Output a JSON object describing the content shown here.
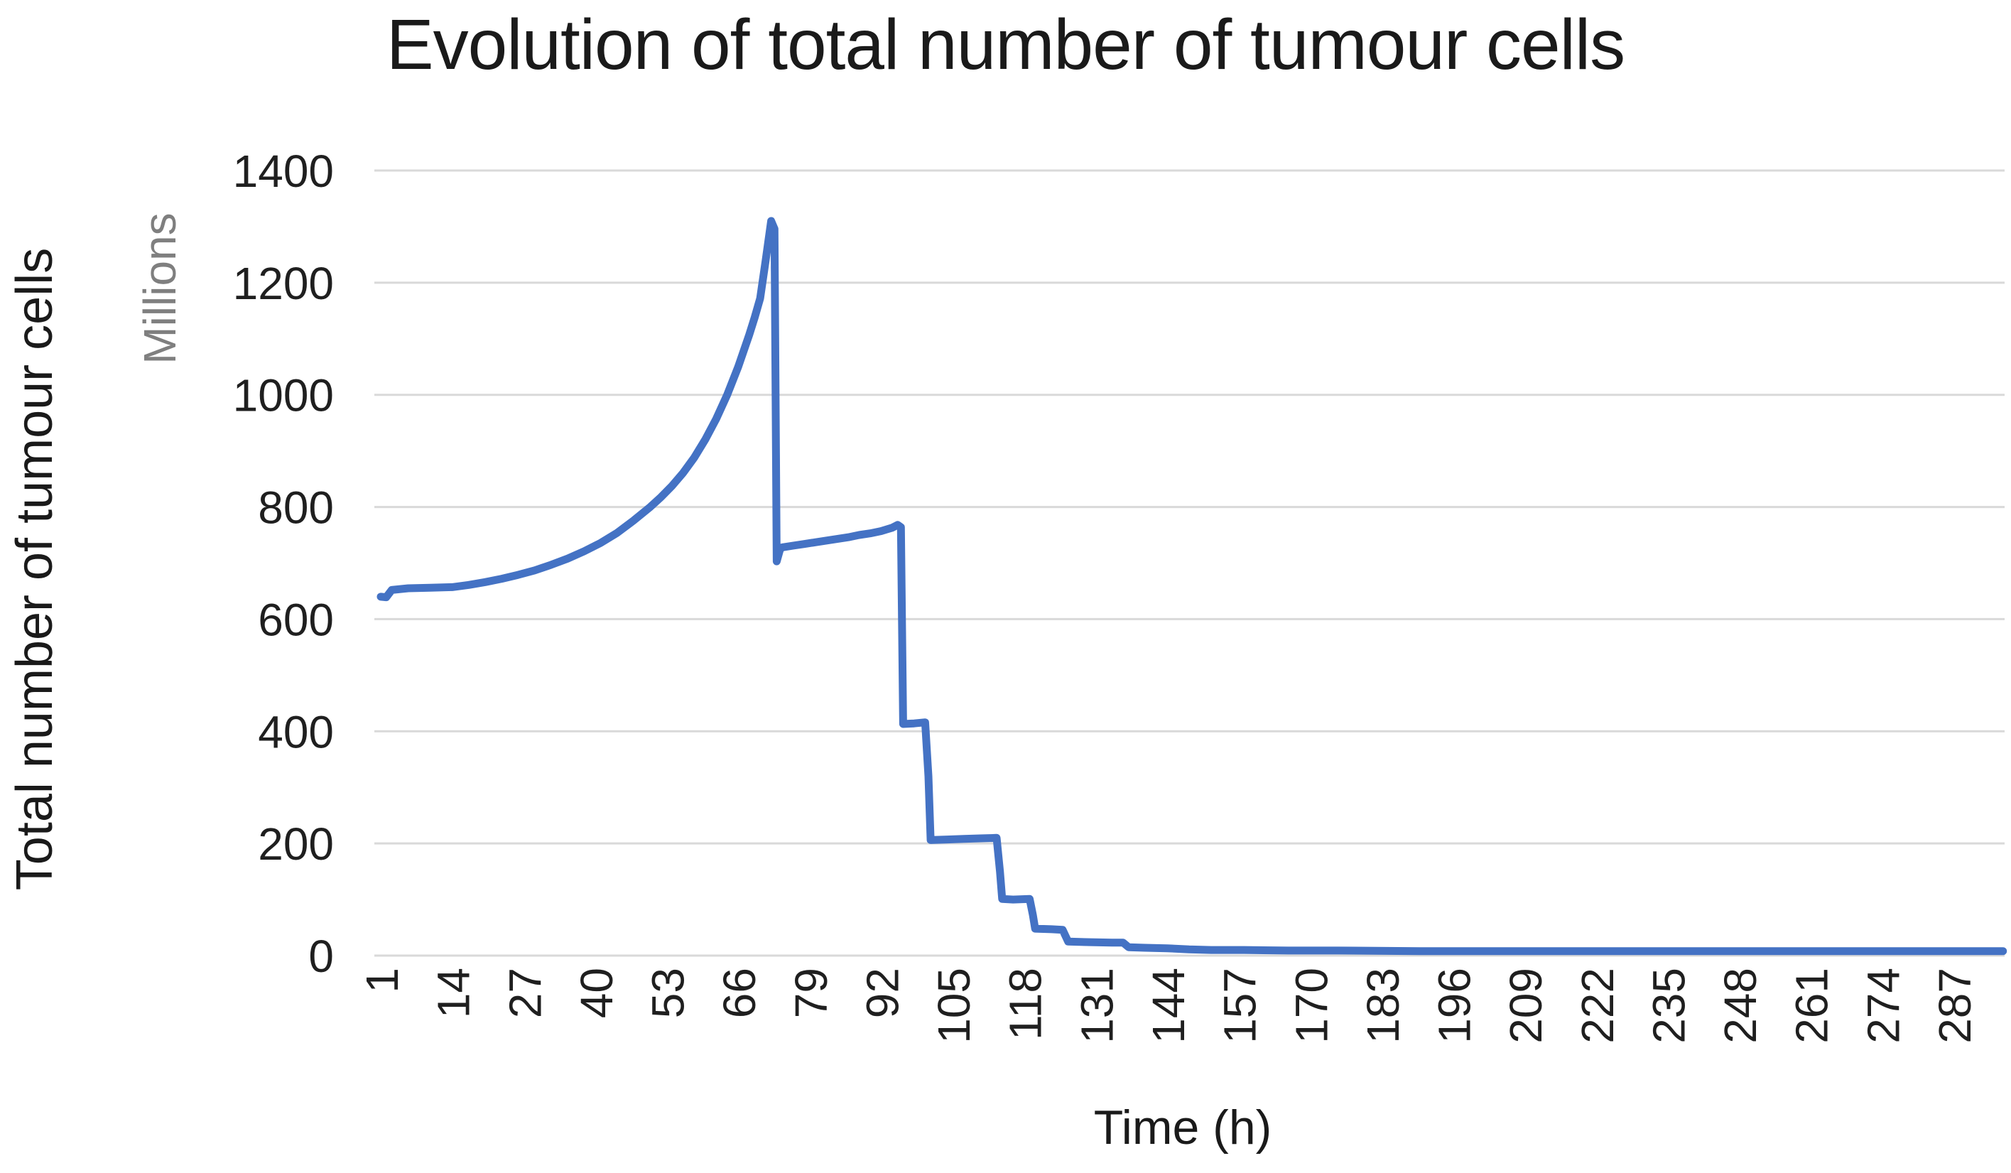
{
  "chart": {
    "title": "Evolution of total number of tumour cells",
    "y_axis_title": "Total number of tumour cells",
    "y_axis_unit": "Millions",
    "x_axis_title": "Time (h)"
  },
  "chart_data": {
    "type": "line",
    "title": "Evolution of total number of tumour cells",
    "xlabel": "Time (h)",
    "ylabel": "Total number of tumour cells",
    "y_unit": "Millions",
    "ylim": [
      0,
      1400
    ],
    "y_ticks": [
      1400,
      1200,
      1000,
      800,
      600,
      400,
      200,
      0
    ],
    "x_ticks": [
      1,
      14,
      27,
      40,
      53,
      66,
      79,
      92,
      105,
      118,
      131,
      144,
      157,
      170,
      183,
      196,
      209,
      222,
      235,
      248,
      261,
      274,
      287
    ],
    "grid": true,
    "legend": false,
    "line_color": "#4472C4",
    "gridline_color": "#D9D9D9",
    "tick_label_color": "#1f1f1f",
    "series": [
      {
        "name": "Total number of tumour cells (millions)",
        "points": [
          [
            1,
            640
          ],
          [
            2,
            639
          ],
          [
            3,
            652
          ],
          [
            6,
            655
          ],
          [
            10,
            656
          ],
          [
            14,
            657
          ],
          [
            17,
            661
          ],
          [
            20,
            666
          ],
          [
            23,
            672
          ],
          [
            26,
            679
          ],
          [
            29,
            687
          ],
          [
            32,
            697
          ],
          [
            35,
            708
          ],
          [
            38,
            721
          ],
          [
            41,
            736
          ],
          [
            44,
            754
          ],
          [
            47,
            776
          ],
          [
            50,
            800
          ],
          [
            52,
            818
          ],
          [
            54,
            838
          ],
          [
            56,
            861
          ],
          [
            58,
            888
          ],
          [
            60,
            920
          ],
          [
            62,
            957
          ],
          [
            64,
            1000
          ],
          [
            66,
            1050
          ],
          [
            68,
            1107
          ],
          [
            69,
            1138
          ],
          [
            70,
            1172
          ],
          [
            71,
            1240
          ],
          [
            72,
            1310
          ],
          [
            72.6,
            1296
          ],
          [
            73,
            703
          ],
          [
            73.6,
            724
          ],
          [
            74,
            728
          ],
          [
            76,
            731
          ],
          [
            78,
            734
          ],
          [
            80,
            737
          ],
          [
            82,
            740
          ],
          [
            84,
            743
          ],
          [
            86,
            746
          ],
          [
            88,
            750
          ],
          [
            90,
            753
          ],
          [
            92,
            757
          ],
          [
            93,
            760
          ],
          [
            94,
            763
          ],
          [
            95,
            768
          ],
          [
            95.6,
            764
          ],
          [
            96,
            413
          ],
          [
            98,
            414
          ],
          [
            100,
            416
          ],
          [
            100.6,
            320
          ],
          [
            101,
            206
          ],
          [
            104,
            207
          ],
          [
            107,
            208
          ],
          [
            110,
            209
          ],
          [
            113,
            210
          ],
          [
            113.6,
            150
          ],
          [
            114,
            101
          ],
          [
            116,
            100
          ],
          [
            119,
            101
          ],
          [
            119.6,
            72
          ],
          [
            120,
            48
          ],
          [
            123,
            47
          ],
          [
            125,
            46
          ],
          [
            126,
            25
          ],
          [
            130,
            24
          ],
          [
            134,
            23
          ],
          [
            136,
            23
          ],
          [
            137,
            15
          ],
          [
            140,
            14
          ],
          [
            144,
            13
          ],
          [
            148,
            11
          ],
          [
            152,
            10
          ],
          [
            158,
            10
          ],
          [
            166,
            9
          ],
          [
            175,
            9
          ],
          [
            190,
            8
          ],
          [
            210,
            8
          ],
          [
            230,
            8
          ],
          [
            250,
            8
          ],
          [
            270,
            8
          ],
          [
            287,
            8
          ],
          [
            296,
            8
          ]
        ]
      }
    ]
  }
}
